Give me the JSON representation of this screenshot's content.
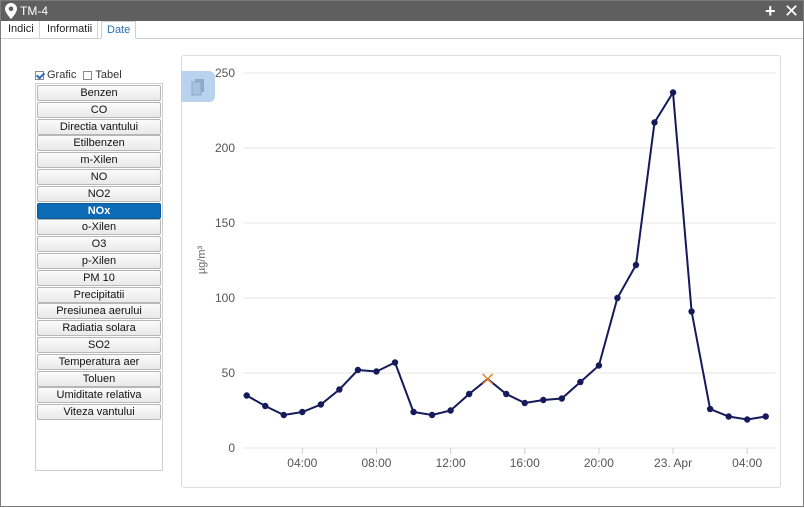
{
  "window": {
    "title": "TM-4"
  },
  "tabs": [
    {
      "label": "Indici"
    },
    {
      "label": "Informatii"
    },
    {
      "label": "Date"
    }
  ],
  "view_toggle": {
    "chart_label": "Grafic",
    "table_label": "Tabel",
    "selected": "Grafic"
  },
  "parameters": [
    "Benzen",
    "CO",
    "Directia vantului",
    "Etilbenzen",
    "m-Xilen",
    "NO",
    "NO2",
    "NOx",
    "o-Xilen",
    "O3",
    "p-Xilen",
    "PM 10",
    "Precipitatii",
    "Presiunea aerului",
    "Radiatia solara",
    "SO2",
    "Temperatura aer",
    "Toluen",
    "Umiditate relativa",
    "Viteza vantului"
  ],
  "selected_parameter": "NOx",
  "colors": {
    "line": "#141a5a",
    "accent": "#0d6ab5",
    "highlight": "#d4832d",
    "grid": "#e4e4e4"
  },
  "chart_data": {
    "type": "line",
    "ylabel": "µg/m³",
    "ylim": [
      0,
      250
    ],
    "yticks": [
      0,
      50,
      100,
      150,
      200,
      250
    ],
    "x_unit": "hour",
    "xlim": [
      0.8,
      29.5
    ],
    "xticks": [
      {
        "x": 4,
        "label": "04:00"
      },
      {
        "x": 8,
        "label": "08:00"
      },
      {
        "x": 12,
        "label": "12:00"
      },
      {
        "x": 16,
        "label": "16:00"
      },
      {
        "x": 20,
        "label": "20:00"
      },
      {
        "x": 24,
        "label": "23. Apr"
      },
      {
        "x": 28,
        "label": "04:00"
      }
    ],
    "grid": true,
    "legend": false,
    "series": [
      {
        "x": [
          1,
          2,
          3,
          4,
          5,
          6,
          7,
          8,
          9,
          10,
          11,
          12,
          13,
          14,
          15,
          16,
          17,
          18,
          19,
          20,
          21,
          22,
          23,
          24,
          25,
          26,
          27,
          28,
          29
        ],
        "values": [
          35,
          28,
          22,
          24,
          29,
          39,
          52,
          51,
          57,
          24,
          22,
          25,
          36,
          46,
          36,
          30,
          32,
          33,
          44,
          55,
          100,
          122,
          217,
          237,
          91,
          26,
          21,
          19,
          21
        ],
        "highlight_index": 13
      }
    ]
  }
}
